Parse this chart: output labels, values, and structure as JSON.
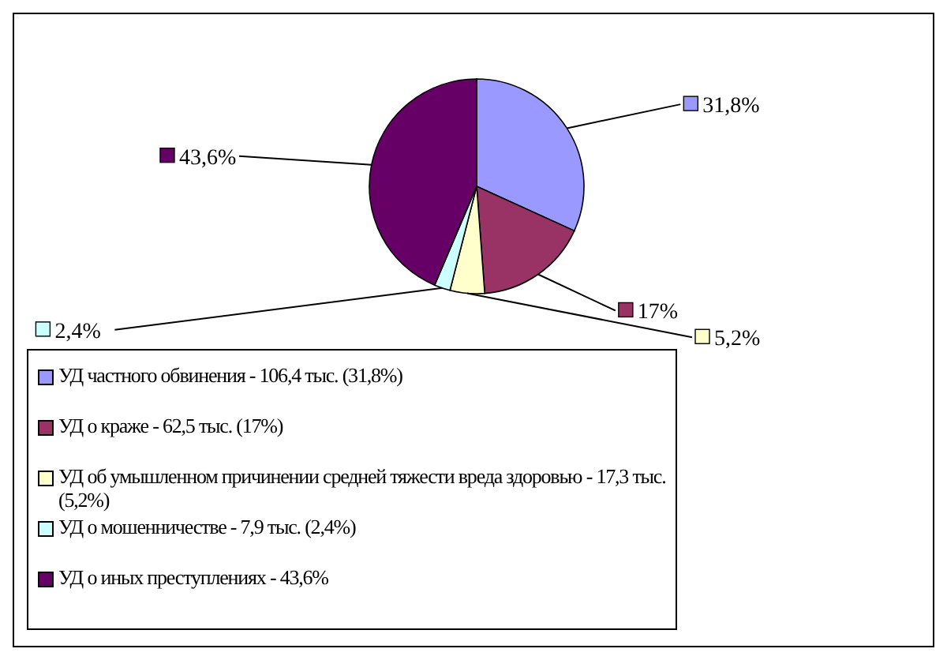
{
  "chart_data": {
    "type": "pie",
    "categories": [
      "УД частного обвинения - 106,4 тыс. (31,8%)",
      "УД о краже - 62,5 тыс. (17%)",
      "УД об умышленном причинении средней тяжести вреда здоровью - 17,3 тыс. (5,2%)",
      "УД о мошенничестве - 7,9 тыс. (2,4%)",
      "УД о иных преступлениях - 43,6%"
    ],
    "values": [
      31.8,
      17,
      5.2,
      2.4,
      43.6
    ],
    "colors": [
      "#9999ff",
      "#993366",
      "#ffffcc",
      "#ccffff",
      "#660066"
    ],
    "value_labels": [
      "31,8%",
      "17%",
      "5,2%",
      "2,4%",
      "43,6%"
    ],
    "legend": "bottom left"
  }
}
